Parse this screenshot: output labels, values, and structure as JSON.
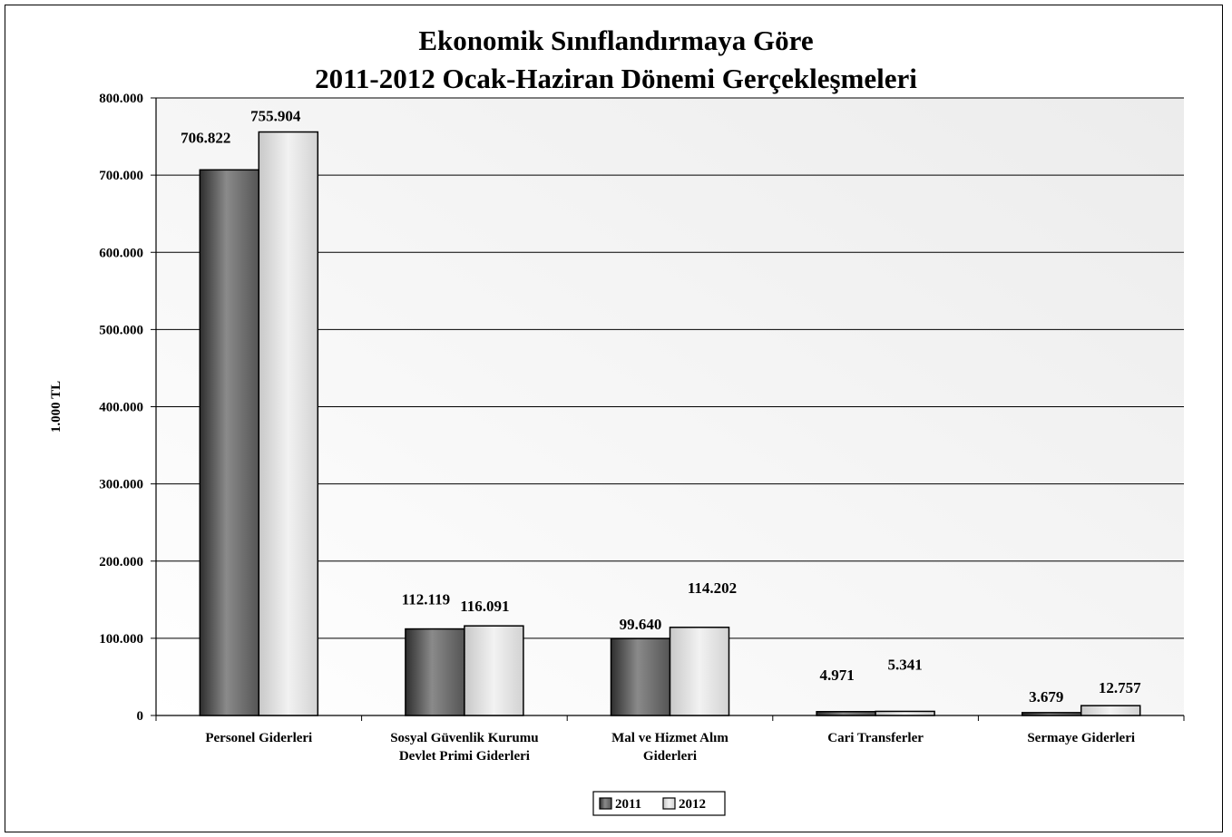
{
  "chart_data": {
    "type": "bar",
    "title_lines": [
      "Ekonomik Sınıflandırmaya Göre",
      "2011-2012 Ocak-Haziran Dönemi Gerçekleşmeleri"
    ],
    "ylabel": "1.000 TL",
    "xlabel": "",
    "ylim": [
      0,
      800000
    ],
    "y_ticks": [
      0,
      100000,
      200000,
      300000,
      400000,
      500000,
      600000,
      700000,
      800000
    ],
    "y_tick_labels": [
      "0",
      "100.000",
      "200.000",
      "300.000",
      "400.000",
      "500.000",
      "600.000",
      "700.000",
      "800.000"
    ],
    "categories": [
      [
        "Personel Giderleri"
      ],
      [
        "Sosyal Güvenlik Kurumu",
        "Devlet Primi Giderleri"
      ],
      [
        "Mal ve Hizmet Alım",
        "Giderleri"
      ],
      [
        "Cari Transferler"
      ],
      [
        "Sermaye Giderleri"
      ]
    ],
    "series": [
      {
        "name": "2011",
        "values": [
          706822,
          112119,
          99640,
          4971,
          3679
        ],
        "labels": [
          "706.822",
          "112.119",
          "99.640",
          "4.971",
          "3.679"
        ]
      },
      {
        "name": "2012",
        "values": [
          755904,
          116091,
          114202,
          5341,
          12757
        ],
        "labels": [
          "755.904",
          "116.091",
          "114.202",
          "5.341",
          "12.757"
        ]
      }
    ],
    "grid": true,
    "legend_position": "bottom",
    "colors": {
      "series_2011": "#6e6e6e",
      "series_2012": "#d9d9d9",
      "plot_background": "#f2f2f2",
      "gridline": "#000000"
    }
  }
}
